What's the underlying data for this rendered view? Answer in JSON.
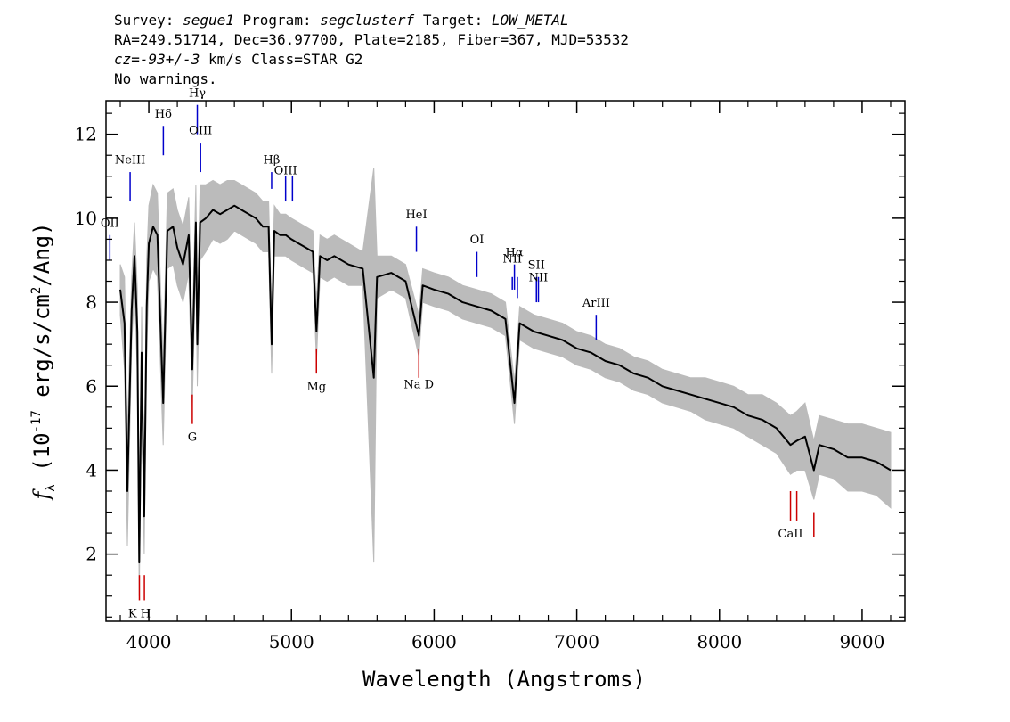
{
  "header": {
    "survey_label": "Survey:",
    "survey_value": "segue1",
    "program_label": "Program:",
    "program_value": "segclusterf",
    "target_label": "Target:",
    "target_value": "LOW_METAL",
    "line2": "RA=249.51714, Dec=36.97700, Plate=2185, Fiber=367, MJD=53532",
    "cz_value": "cz=-93+/-3",
    "cz_rest": " km/s Class=STAR G2",
    "line4": "No warnings."
  },
  "chart_data": {
    "type": "line",
    "xlabel": "Wavelength (Angstroms)",
    "ylabel_main": "f",
    "ylabel_sub": "λ",
    "ylabel_rest": " (10",
    "ylabel_exp1": "-17",
    "ylabel_rest2": " erg/s/cm",
    "ylabel_exp2": "2",
    "ylabel_rest3": "/Ang)",
    "xlim": [
      3700,
      9300
    ],
    "ylim": [
      0.4,
      12.8
    ],
    "x_ticks": [
      4000,
      5000,
      6000,
      7000,
      8000,
      9000
    ],
    "x_tick_labels": [
      "4000",
      "5000",
      "6000",
      "7000",
      "8000",
      "9000"
    ],
    "y_ticks": [
      2,
      4,
      6,
      8,
      10,
      12
    ],
    "y_tick_labels": [
      "2",
      "4",
      "6",
      "8",
      "10",
      "12"
    ],
    "colors": {
      "spectrum": "#000000",
      "error": "#bbbbbb",
      "emission": "#0000cc",
      "absorption": "#cc0000"
    },
    "spectrum": {
      "x": [
        3800,
        3830,
        3850,
        3880,
        3900,
        3920,
        3933,
        3950,
        3968,
        3985,
        4000,
        4030,
        4060,
        4101,
        4130,
        4170,
        4200,
        4240,
        4280,
        4305,
        4330,
        4340,
        4360,
        4400,
        4450,
        4500,
        4550,
        4600,
        4650,
        4700,
        4750,
        4800,
        4840,
        4861,
        4880,
        4920,
        4960,
        5000,
        5050,
        5100,
        5150,
        5175,
        5200,
        5250,
        5300,
        5400,
        5500,
        5577,
        5600,
        5700,
        5800,
        5893,
        5920,
        6000,
        6100,
        6200,
        6300,
        6400,
        6500,
        6563,
        6600,
        6700,
        6800,
        6900,
        7000,
        7100,
        7200,
        7300,
        7400,
        7500,
        7600,
        7700,
        7800,
        7900,
        8000,
        8100,
        8200,
        8300,
        8400,
        8498,
        8542,
        8600,
        8662,
        8700,
        8800,
        8900,
        9000,
        9100,
        9200
      ],
      "y": [
        8.3,
        7.5,
        3.5,
        7.8,
        9.1,
        7.3,
        1.8,
        6.8,
        2.9,
        7.9,
        9.4,
        9.8,
        9.6,
        5.6,
        9.7,
        9.8,
        9.3,
        8.9,
        9.6,
        6.4,
        9.9,
        7.0,
        9.9,
        10.0,
        10.2,
        10.1,
        10.2,
        10.3,
        10.2,
        10.1,
        10.0,
        9.8,
        9.8,
        7.0,
        9.7,
        9.6,
        9.6,
        9.5,
        9.4,
        9.3,
        9.2,
        7.3,
        9.1,
        9.0,
        9.1,
        8.9,
        8.8,
        6.2,
        8.6,
        8.7,
        8.5,
        7.2,
        8.4,
        8.3,
        8.2,
        8.0,
        7.9,
        7.8,
        7.6,
        5.6,
        7.5,
        7.3,
        7.2,
        7.1,
        6.9,
        6.8,
        6.6,
        6.5,
        6.3,
        6.2,
        6.0,
        5.9,
        5.8,
        5.7,
        5.6,
        5.5,
        5.3,
        5.2,
        5.0,
        4.6,
        4.7,
        4.8,
        4.0,
        4.6,
        4.5,
        4.3,
        4.3,
        4.2,
        4.0
      ]
    },
    "error_band": {
      "upper": [
        8.9,
        8.6,
        4.8,
        8.6,
        9.9,
        8.3,
        2.6,
        7.9,
        3.8,
        9.0,
        10.3,
        10.8,
        10.6,
        6.6,
        10.6,
        10.7,
        10.2,
        9.8,
        10.5,
        7.3,
        10.8,
        8.0,
        10.8,
        10.8,
        10.9,
        10.8,
        10.9,
        10.9,
        10.8,
        10.7,
        10.6,
        10.4,
        10.4,
        7.7,
        10.3,
        10.1,
        10.1,
        10.0,
        9.9,
        9.8,
        9.7,
        8.0,
        9.6,
        9.5,
        9.6,
        9.4,
        9.2,
        11.2,
        9.1,
        9.1,
        8.9,
        7.7,
        8.8,
        8.7,
        8.6,
        8.4,
        8.3,
        8.2,
        8.0,
        6.1,
        7.9,
        7.7,
        7.6,
        7.5,
        7.3,
        7.2,
        7.0,
        6.9,
        6.7,
        6.6,
        6.4,
        6.3,
        6.2,
        6.2,
        6.1,
        6.0,
        5.8,
        5.8,
        5.6,
        5.3,
        5.4,
        5.6,
        4.7,
        5.3,
        5.2,
        5.1,
        5.1,
        5.0,
        4.9
      ],
      "lower": [
        7.7,
        6.4,
        2.2,
        7.0,
        8.3,
        6.3,
        1.0,
        5.7,
        2.0,
        6.8,
        8.5,
        8.8,
        8.6,
        4.6,
        8.8,
        8.9,
        8.4,
        8.0,
        8.7,
        5.5,
        9.0,
        6.0,
        9.0,
        9.2,
        9.5,
        9.4,
        9.5,
        9.7,
        9.6,
        9.5,
        9.4,
        9.2,
        9.2,
        6.3,
        9.1,
        9.1,
        9.1,
        9.0,
        8.9,
        8.8,
        8.7,
        6.6,
        8.6,
        8.5,
        8.6,
        8.4,
        8.4,
        1.8,
        8.1,
        8.3,
        8.1,
        6.7,
        8.0,
        7.9,
        7.8,
        7.6,
        7.5,
        7.4,
        7.2,
        5.1,
        7.1,
        6.9,
        6.8,
        6.7,
        6.5,
        6.4,
        6.2,
        6.1,
        5.9,
        5.8,
        5.6,
        5.5,
        5.4,
        5.2,
        5.1,
        5.0,
        4.8,
        4.6,
        4.4,
        3.9,
        4.0,
        4.0,
        3.3,
        3.9,
        3.8,
        3.5,
        3.5,
        3.4,
        3.1
      ]
    },
    "emission_lines": [
      {
        "label": "OII",
        "x": 3727,
        "y0": 9.0,
        "y1": 9.6,
        "ly": 9.8
      },
      {
        "label": "NeIII",
        "x": 3869,
        "y0": 10.4,
        "y1": 11.1,
        "ly": 11.3
      },
      {
        "label": "Hδ",
        "x": 4102,
        "y0": 11.5,
        "y1": 12.2,
        "ly": 12.4
      },
      {
        "label": "Hγ",
        "x": 4340,
        "y0": 12.0,
        "y1": 12.7,
        "ly": 12.9
      },
      {
        "label": "OIII",
        "x": 4363,
        "y0": 11.1,
        "y1": 11.8,
        "ly": 12.0
      },
      {
        "label": "Hβ",
        "x": 4861,
        "y0": 10.7,
        "y1": 11.1,
        "ly": 11.3
      },
      {
        "label": "OIII",
        "x": 4959,
        "y0": 10.4,
        "y1": 11.0,
        "ly": 11.05
      },
      {
        "label": "",
        "x": 5007,
        "y0": 10.4,
        "y1": 11.0,
        "ly": 11.05
      },
      {
        "label": "HeI",
        "x": 5876,
        "y0": 9.2,
        "y1": 9.8,
        "ly": 10.0
      },
      {
        "label": "OI",
        "x": 6300,
        "y0": 8.6,
        "y1": 9.2,
        "ly": 9.4
      },
      {
        "label": "NII",
        "x": 6548,
        "y0": 8.3,
        "y1": 8.6,
        "ly": 8.95
      },
      {
        "label": "Hα",
        "x": 6563,
        "y0": 8.3,
        "y1": 8.9,
        "ly": 9.1
      },
      {
        "label": "",
        "x": 6584,
        "y0": 8.1,
        "y1": 8.6,
        "ly": 8.6
      },
      {
        "label": "SII",
        "x": 6717,
        "y0": 8.0,
        "y1": 8.6,
        "ly": 8.8
      },
      {
        "label": "NII",
        "x": 6731,
        "y0": 8.0,
        "y1": 8.6,
        "ly": 8.5
      },
      {
        "label": "ArIII",
        "x": 7136,
        "y0": 7.1,
        "y1": 7.7,
        "ly": 7.9
      }
    ],
    "absorption_lines": [
      {
        "label": "K H",
        "x": 3934,
        "y0": 0.9,
        "y1": 1.5,
        "ly": 0.5
      },
      {
        "label": "",
        "x": 3969,
        "y0": 0.9,
        "y1": 1.5,
        "ly": 0.5
      },
      {
        "label": "G",
        "x": 4305,
        "y0": 5.1,
        "y1": 5.8,
        "ly": 4.7
      },
      {
        "label": "Mg",
        "x": 5175,
        "y0": 6.3,
        "y1": 6.9,
        "ly": 5.9
      },
      {
        "label": "Na  D",
        "x": 5893,
        "y0": 6.2,
        "y1": 6.9,
        "ly": 5.95
      },
      {
        "label": "CaII",
        "x": 8498,
        "y0": 2.8,
        "y1": 3.5,
        "ly": 2.4
      },
      {
        "label": "",
        "x": 8542,
        "y0": 2.8,
        "y1": 3.5,
        "ly": 2.4
      },
      {
        "label": "",
        "x": 8662,
        "y0": 2.4,
        "y1": 3.0,
        "ly": 2.4
      }
    ]
  }
}
